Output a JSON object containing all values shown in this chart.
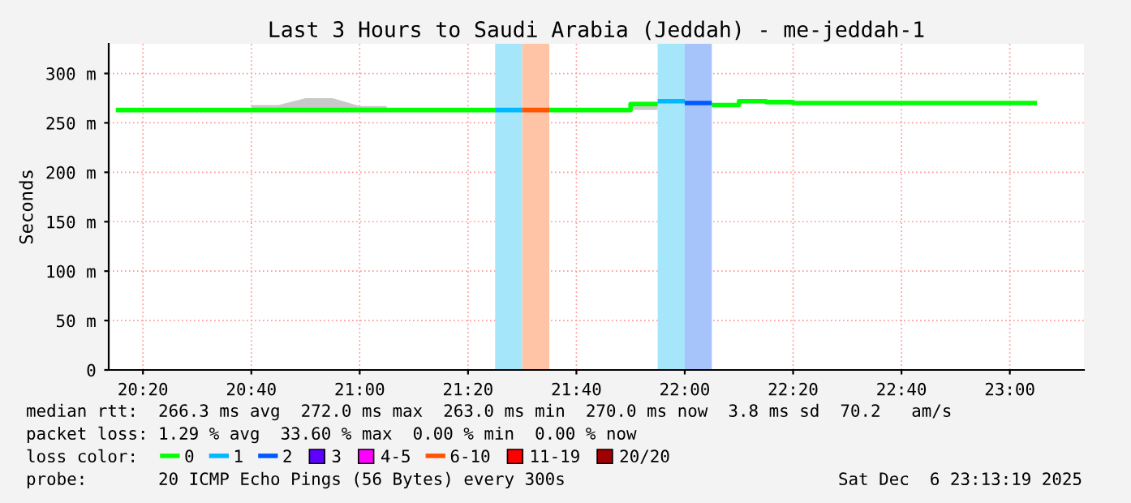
{
  "chart_data": {
    "type": "step",
    "title": "Last 3 Hours to Saudi Arabia (Jeddah) - me-jeddah-1",
    "ylabel": "Seconds",
    "x": [
      20.25,
      20.3333,
      20.4167,
      20.5,
      20.5833,
      20.6667,
      20.75,
      20.8333,
      20.9167,
      21.0,
      21.0833,
      21.1667,
      21.25,
      21.3333,
      21.4167,
      21.5,
      21.5833,
      21.6667,
      21.75,
      21.8333,
      21.9167,
      22.0,
      22.0833,
      22.1667,
      22.25,
      22.3333,
      22.4167,
      22.5,
      22.5833,
      22.6667,
      22.75,
      22.8333,
      22.9167,
      23.0,
      23.0833
    ],
    "series": [
      {
        "name": "0",
        "color": "#00ff00",
        "values": [
          263,
          263,
          263,
          263,
          263,
          263,
          263,
          263,
          263,
          263,
          263,
          263,
          263,
          263,
          263,
          null,
          263,
          263,
          263,
          269,
          269,
          null,
          268,
          272,
          271,
          270,
          270,
          270,
          270,
          270,
          270,
          270,
          270,
          270,
          270
        ],
        "lower": [
          null,
          null,
          null,
          null,
          null,
          263,
          263,
          263,
          263,
          263,
          263,
          null,
          null,
          null,
          null,
          null,
          null,
          null,
          null,
          263,
          263,
          null,
          null,
          null,
          null,
          null,
          null,
          null,
          null,
          null,
          null,
          null,
          null,
          null,
          null
        ],
        "upper": [
          null,
          null,
          null,
          null,
          null,
          268,
          268,
          275,
          275,
          267,
          267,
          null,
          null,
          null,
          null,
          null,
          null,
          null,
          null,
          271,
          271,
          null,
          null,
          null,
          null,
          null,
          null,
          null,
          null,
          null,
          null,
          null,
          null,
          null,
          null
        ]
      },
      {
        "name": "1",
        "color": "#00b8ff",
        "values": [
          null,
          null,
          null,
          null,
          null,
          null,
          null,
          null,
          null,
          null,
          null,
          null,
          null,
          null,
          263,
          263,
          null,
          null,
          null,
          null,
          272,
          272,
          null,
          null,
          null,
          null,
          null,
          null,
          null,
          null,
          null,
          null,
          null,
          null,
          null
        ]
      },
      {
        "name": "2",
        "color": "#0059ff",
        "values": [
          null,
          null,
          null,
          null,
          null,
          null,
          null,
          null,
          null,
          null,
          null,
          null,
          null,
          null,
          null,
          null,
          null,
          null,
          null,
          null,
          null,
          270,
          270,
          null,
          null,
          null,
          null,
          null,
          null,
          null,
          null,
          null,
          null,
          null,
          null
        ]
      },
      {
        "type": "bar",
        "name": "3",
        "color": "#5e00ff",
        "values": [
          null,
          null,
          null,
          null,
          null,
          null,
          null,
          null,
          null,
          null,
          null,
          null,
          null,
          null,
          null,
          null,
          null,
          null,
          null,
          null,
          null,
          null,
          null,
          null,
          null,
          null,
          null,
          null,
          null,
          null,
          null,
          null,
          null,
          null,
          null
        ]
      },
      {
        "type": "bar",
        "name": "4-5",
        "color": "#ff00ff",
        "values": [
          null,
          null,
          null,
          null,
          null,
          null,
          null,
          null,
          null,
          null,
          null,
          null,
          null,
          null,
          null,
          null,
          null,
          null,
          null,
          null,
          null,
          null,
          null,
          null,
          null,
          null,
          null,
          null,
          null,
          null,
          null,
          null,
          null,
          null,
          null
        ]
      },
      {
        "name": "6-10",
        "color": "#ff5500",
        "values": [
          null,
          null,
          null,
          null,
          null,
          null,
          null,
          null,
          null,
          null,
          null,
          null,
          null,
          null,
          null,
          263,
          263,
          null,
          null,
          null,
          null,
          null,
          null,
          null,
          null,
          null,
          null,
          null,
          null,
          null,
          null,
          null,
          null,
          null,
          null
        ]
      },
      {
        "type": "bar",
        "name": "11-19",
        "color": "#ff0000",
        "values": [
          null,
          null,
          null,
          null,
          null,
          null,
          null,
          null,
          null,
          null,
          null,
          null,
          null,
          null,
          null,
          null,
          null,
          null,
          null,
          null,
          null,
          null,
          null,
          null,
          null,
          null,
          null,
          null,
          null,
          null,
          null,
          null,
          null,
          null,
          null
        ]
      },
      {
        "type": "bar",
        "name": "20/20",
        "color": "#a10000",
        "values": [
          null,
          null,
          null,
          null,
          null,
          null,
          null,
          null,
          null,
          null,
          null,
          null,
          null,
          null,
          null,
          null,
          null,
          null,
          null,
          null,
          null,
          null,
          null,
          null,
          null,
          null,
          null,
          null,
          null,
          null,
          null,
          null,
          null,
          null,
          null
        ]
      }
    ],
    "bands": [
      {
        "axis": "x",
        "from": 21.4167,
        "to": 21.5,
        "color": "#a6e6fa"
      },
      {
        "axis": "x",
        "from": 21.5,
        "to": 21.5833,
        "color": "#ffc4a6"
      },
      {
        "axis": "x",
        "from": 21.9167,
        "to": 22.0,
        "color": "#a6e6fa"
      },
      {
        "axis": "x",
        "from": 22.0,
        "to": 22.0833,
        "color": "#a6c4fa"
      }
    ],
    "xlim": [
      20.228,
      23.228
    ],
    "xticks": [
      {
        "value": 20.3333,
        "label": "20:20"
      },
      {
        "value": 20.6667,
        "label": "20:40"
      },
      {
        "value": 21.0,
        "label": "21:00"
      },
      {
        "value": 21.3333,
        "label": "21:20"
      },
      {
        "value": 21.6667,
        "label": "21:40"
      },
      {
        "value": 22.0,
        "label": "22:00"
      },
      {
        "value": 22.3333,
        "label": "22:20"
      },
      {
        "value": 22.6667,
        "label": "22:40"
      },
      {
        "value": 23.0,
        "label": "23:00"
      }
    ],
    "ylim": [
      0,
      330
    ],
    "yticks": [
      0,
      {
        "value": 50,
        "label": "50 m"
      },
      {
        "value": 100,
        "label": "100 m"
      },
      {
        "value": 150,
        "label": "150 m"
      },
      {
        "value": 200,
        "label": "200 m"
      },
      {
        "value": 250,
        "label": "250 m"
      },
      {
        "value": 300,
        "label": "300 m"
      }
    ],
    "grid": true,
    "legend": "bottom",
    "legend_title": "loss color:",
    "annotations": [
      "median rtt:  266.3 ms avg  272.0 ms max  263.0 ms min  270.0 ms now  3.8 ms sd  70.2   am/s",
      "packet loss: 1.29 % avg  33.60 % max  0.00 % min  0.00 % now",
      "probe:       20 ICMP Echo Pings (56 Bytes) every 300s",
      "Sat Dec  6 23:13:19 2025"
    ]
  }
}
